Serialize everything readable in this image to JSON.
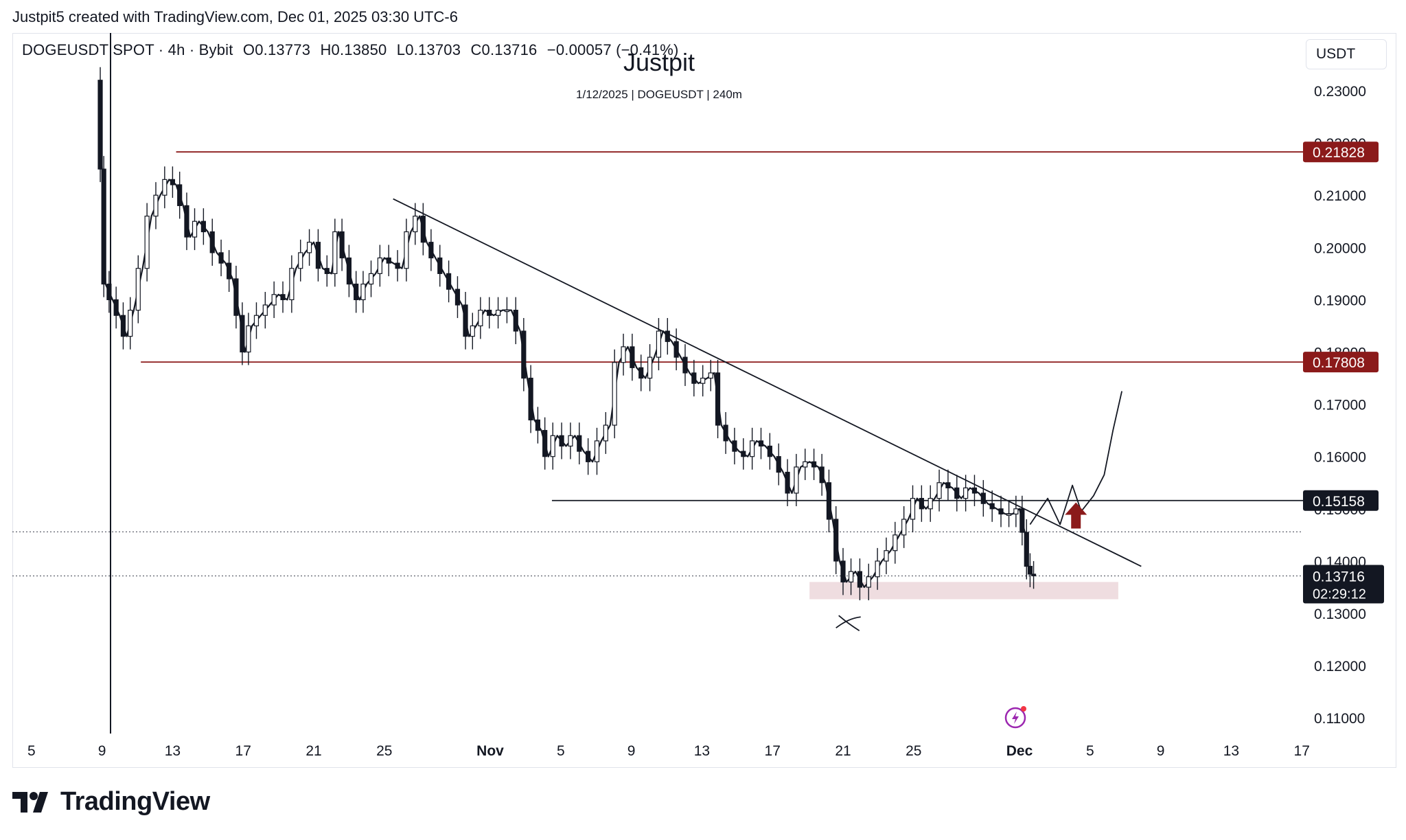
{
  "header": {
    "text": "Justpit5 created with TradingView.com, Dec 01, 2025 03:30 UTC-6"
  },
  "symbol": {
    "name": "DOGEUSDT SPOT · 4h · Bybit",
    "open": "O0.13773",
    "high": "H0.13850",
    "low": "L0.13703",
    "close": "C0.13716",
    "change": "−0.00057 (−0.41%)"
  },
  "watermark": {
    "title": "Justpit",
    "subtitle": "1/12/2025 | DOGEUSDT | 240m"
  },
  "currency": "USDT",
  "branding": "TradingView",
  "colors": {
    "up": "#131722",
    "level": "#8b1a1a",
    "zone": "#efdde0",
    "arrow": "#8b1a1a",
    "price_tag": "#131722"
  },
  "chart_data": {
    "type": "candlestick",
    "ylim": [
      0.105,
      0.235
    ],
    "y_ticks": [
      "0.23000",
      "0.22000",
      "0.21000",
      "0.20000",
      "0.19000",
      "0.18000",
      "0.17000",
      "0.16000",
      "0.15000",
      "0.14000",
      "0.13000",
      "0.12000",
      "0.11000"
    ],
    "x_ticks": [
      "5",
      "9",
      "13",
      "17",
      "21",
      "25",
      "Nov",
      "5",
      "9",
      "13",
      "17",
      "21",
      "25",
      "Dec",
      "5",
      "9",
      "13",
      "17"
    ],
    "x_tick_days": [
      -26,
      -22,
      -18,
      -14,
      -10,
      -6,
      0,
      4,
      8,
      12,
      16,
      20,
      24,
      30,
      34,
      38,
      42,
      46
    ],
    "levels": [
      {
        "price": 0.21828,
        "label": "0.21828",
        "from_day": -17.8
      },
      {
        "price": 0.17808,
        "label": "0.17808",
        "from_day": -19.8
      },
      {
        "price": 0.15158,
        "label": "0.15158",
        "from_day": 3.5
      }
    ],
    "last_price": {
      "label": "0.13716",
      "countdown": "02:29:12",
      "price": 0.13716
    },
    "dotted_lines": [
      0.14559,
      0.13716
    ],
    "trendline": {
      "from": [
        -5.5,
        0.2093
      ],
      "to": [
        36.9,
        0.139
      ]
    },
    "demand_zone": {
      "from_day": 18.1,
      "to_day": 35.6,
      "low": 0.1327,
      "high": 0.136
    },
    "price_path": [
      [
        -22.2,
        0.232
      ],
      [
        -22.0,
        0.215
      ],
      [
        -21.8,
        0.193
      ],
      [
        -21.4,
        0.19
      ],
      [
        -21.0,
        0.187
      ],
      [
        -20.6,
        0.183
      ],
      [
        -20.2,
        0.188
      ],
      [
        -19.7,
        0.196
      ],
      [
        -19.2,
        0.206
      ],
      [
        -18.7,
        0.21
      ],
      [
        -18.2,
        0.213
      ],
      [
        -17.8,
        0.212
      ],
      [
        -17.4,
        0.208
      ],
      [
        -17.0,
        0.202
      ],
      [
        -16.5,
        0.205
      ],
      [
        -16.0,
        0.203
      ],
      [
        -15.5,
        0.199
      ],
      [
        -15.0,
        0.197
      ],
      [
        -14.6,
        0.194
      ],
      [
        -14.2,
        0.187
      ],
      [
        -13.9,
        0.18
      ],
      [
        -13.5,
        0.185
      ],
      [
        -13.0,
        0.187
      ],
      [
        -12.5,
        0.189
      ],
      [
        -12.0,
        0.191
      ],
      [
        -11.5,
        0.19
      ],
      [
        -11.0,
        0.196
      ],
      [
        -10.5,
        0.199
      ],
      [
        -10.0,
        0.201
      ],
      [
        -9.5,
        0.196
      ],
      [
        -9.0,
        0.195
      ],
      [
        -8.6,
        0.203
      ],
      [
        -8.2,
        0.198
      ],
      [
        -7.8,
        0.193
      ],
      [
        -7.4,
        0.19
      ],
      [
        -7.0,
        0.193
      ],
      [
        -6.5,
        0.195
      ],
      [
        -6.0,
        0.198
      ],
      [
        -5.5,
        0.197
      ],
      [
        -5.0,
        0.196
      ],
      [
        -4.5,
        0.203
      ],
      [
        -4.0,
        0.206
      ],
      [
        -3.6,
        0.201
      ],
      [
        -3.1,
        0.198
      ],
      [
        -2.6,
        0.195
      ],
      [
        -2.1,
        0.192
      ],
      [
        -1.6,
        0.189
      ],
      [
        -1.2,
        0.183
      ],
      [
        -0.8,
        0.185
      ],
      [
        -0.3,
        0.188
      ],
      [
        0.2,
        0.187
      ],
      [
        0.7,
        0.188
      ],
      [
        1.2,
        0.188
      ],
      [
        1.7,
        0.184
      ],
      [
        2.1,
        0.175
      ],
      [
        2.5,
        0.167
      ],
      [
        2.9,
        0.165
      ],
      [
        3.3,
        0.16
      ],
      [
        3.8,
        0.164
      ],
      [
        4.3,
        0.162
      ],
      [
        4.8,
        0.164
      ],
      [
        5.3,
        0.161
      ],
      [
        5.8,
        0.159
      ],
      [
        6.3,
        0.163
      ],
      [
        6.8,
        0.166
      ],
      [
        7.3,
        0.178
      ],
      [
        7.8,
        0.181
      ],
      [
        8.3,
        0.177
      ],
      [
        8.8,
        0.175
      ],
      [
        9.3,
        0.179
      ],
      [
        9.8,
        0.184
      ],
      [
        10.3,
        0.182
      ],
      [
        10.8,
        0.179
      ],
      [
        11.3,
        0.176
      ],
      [
        11.8,
        0.174
      ],
      [
        12.3,
        0.175
      ],
      [
        12.7,
        0.176
      ],
      [
        13.1,
        0.166
      ],
      [
        13.6,
        0.163
      ],
      [
        14.1,
        0.161
      ],
      [
        14.6,
        0.16
      ],
      [
        15.1,
        0.163
      ],
      [
        15.6,
        0.162
      ],
      [
        16.1,
        0.16
      ],
      [
        16.6,
        0.157
      ],
      [
        17.1,
        0.153
      ],
      [
        17.6,
        0.158
      ],
      [
        18.1,
        0.159
      ],
      [
        18.6,
        0.158
      ],
      [
        19.0,
        0.155
      ],
      [
        19.4,
        0.148
      ],
      [
        19.8,
        0.14
      ],
      [
        20.2,
        0.136
      ],
      [
        20.7,
        0.138
      ],
      [
        21.2,
        0.135
      ],
      [
        21.7,
        0.137
      ],
      [
        22.2,
        0.14
      ],
      [
        22.7,
        0.142
      ],
      [
        23.2,
        0.145
      ],
      [
        23.7,
        0.148
      ],
      [
        24.2,
        0.152
      ],
      [
        24.7,
        0.15
      ],
      [
        25.2,
        0.152
      ],
      [
        25.7,
        0.155
      ],
      [
        26.2,
        0.154
      ],
      [
        26.7,
        0.152
      ],
      [
        27.2,
        0.154
      ],
      [
        27.7,
        0.153
      ],
      [
        28.2,
        0.151
      ],
      [
        28.7,
        0.15
      ],
      [
        29.2,
        0.149
      ],
      [
        29.6,
        0.149
      ],
      [
        30.0,
        0.15
      ],
      [
        30.3,
        0.1455
      ],
      [
        30.5,
        0.139
      ],
      [
        30.7,
        0.1375
      ],
      [
        30.9,
        0.1372
      ]
    ],
    "annotations": {
      "x_mark_day": 20.3,
      "x_mark_price": 0.128,
      "forecast_path": [
        [
          30.6,
          0.147
        ],
        [
          31.6,
          0.152
        ],
        [
          32.3,
          0.147
        ],
        [
          33.0,
          0.1545
        ],
        [
          33.5,
          0.1495
        ],
        [
          34.2,
          0.1525
        ],
        [
          34.8,
          0.1565
        ],
        [
          35.3,
          0.165
        ],
        [
          35.8,
          0.1725
        ]
      ],
      "arrow_day": 33.2,
      "arrow_price": 0.1478
    }
  }
}
